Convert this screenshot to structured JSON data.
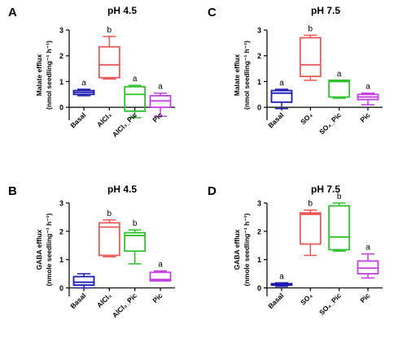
{
  "figure": {
    "panels_order": [
      "A",
      "C",
      "B",
      "D"
    ]
  },
  "chart_data": [
    {
      "panel_letter": "A",
      "type": "box",
      "title": "pH 4.5",
      "ylabel_line1": "Malate efflux",
      "ylabel_line2": "(nmol seedling⁻¹ h⁻¹)",
      "ylim": [
        -0.5,
        3
      ],
      "yticks": [
        0,
        1,
        2,
        3
      ],
      "categories": [
        "Basal",
        "AlCl₃",
        "AlCl₃_Pic",
        "Pic"
      ],
      "colors": [
        "#1a1ab0",
        "#e85a5a",
        "#2ec02e",
        "#c040e0"
      ],
      "letters": [
        "a",
        "b",
        "a",
        "a"
      ],
      "boxes": [
        {
          "min": 0.45,
          "q1": 0.5,
          "median": 0.58,
          "q3": 0.65,
          "max": 0.7
        },
        {
          "min": 1.1,
          "q1": 1.15,
          "median": 1.65,
          "q3": 2.35,
          "max": 2.75
        },
        {
          "min": -0.4,
          "q1": -0.15,
          "median": 0.5,
          "q3": 0.8,
          "max": 0.85
        },
        {
          "min": -0.35,
          "q1": 0.0,
          "median": 0.25,
          "q3": 0.45,
          "max": 0.55
        }
      ]
    },
    {
      "panel_letter": "C",
      "type": "box",
      "title": "pH 7.5",
      "ylabel_line1": "Malate efflux",
      "ylabel_line2": "(nmol seedling⁻¹ h⁻¹)",
      "ylim": [
        -0.5,
        3
      ],
      "yticks": [
        0,
        1,
        2,
        3
      ],
      "categories": [
        "Basal",
        "SO₄",
        "SO₄_Pic",
        "Pic"
      ],
      "colors": [
        "#1a1ab0",
        "#e85a5a",
        "#2ec02e",
        "#c040e0"
      ],
      "letters": [
        "a",
        "b",
        "a",
        "a"
      ],
      "boxes": [
        {
          "min": -0.05,
          "q1": 0.2,
          "median": 0.55,
          "q3": 0.65,
          "max": 0.7
        },
        {
          "min": 1.05,
          "q1": 1.2,
          "median": 1.65,
          "q3": 2.7,
          "max": 2.8
        },
        {
          "min": 0.35,
          "q1": 0.4,
          "median": 1.0,
          "q3": 1.05,
          "max": 1.05
        },
        {
          "min": 0.1,
          "q1": 0.3,
          "median": 0.4,
          "q3": 0.5,
          "max": 0.55
        }
      ]
    },
    {
      "panel_letter": "B",
      "type": "box",
      "title": "pH 4.5",
      "ylabel_line1": "GABA efflux",
      "ylabel_line2": "(nmole seedling⁻¹ h⁻¹)",
      "ylim": [
        -0.3,
        3
      ],
      "yticks": [
        0,
        1,
        2,
        3
      ],
      "categories": [
        "Basal",
        "AlCl₃",
        "AlCl₃_Pic",
        "Pic"
      ],
      "colors": [
        "#1a1ab0",
        "#e85a5a",
        "#2ec02e",
        "#c040e0"
      ],
      "letters": [
        "",
        "b",
        "b",
        "a"
      ],
      "boxes": [
        {
          "min": 0.0,
          "q1": 0.1,
          "median": 0.2,
          "q3": 0.4,
          "max": 0.5
        },
        {
          "min": 1.1,
          "q1": 1.15,
          "median": 2.15,
          "q3": 2.3,
          "max": 2.4
        },
        {
          "min": 0.85,
          "q1": 1.3,
          "median": 1.85,
          "q3": 1.95,
          "max": 2.05
        },
        {
          "min": 0.25,
          "q1": 0.25,
          "median": 0.3,
          "q3": 0.55,
          "max": 0.6
        }
      ]
    },
    {
      "panel_letter": "D",
      "type": "box",
      "title": "pH 7.5",
      "ylabel_line1": "GABA efflux",
      "ylabel_line2": "(nmole seedling⁻¹ h⁻¹)",
      "ylim": [
        -0.3,
        3
      ],
      "yticks": [
        0,
        1,
        2,
        3
      ],
      "categories": [
        "Basal",
        "SO₄",
        "SO₄_Pic",
        "Pic"
      ],
      "colors": [
        "#1a1ab0",
        "#e85a5a",
        "#2ec02e",
        "#c040e0"
      ],
      "letters": [
        "a",
        "b",
        "b",
        "a"
      ],
      "boxes": [
        {
          "min": 0.05,
          "q1": 0.1,
          "median": 0.13,
          "q3": 0.15,
          "max": 0.18
        },
        {
          "min": 1.15,
          "q1": 1.55,
          "median": 2.6,
          "q3": 2.65,
          "max": 2.75
        },
        {
          "min": 1.3,
          "q1": 1.35,
          "median": 1.8,
          "q3": 2.9,
          "max": 3.0
        },
        {
          "min": 0.35,
          "q1": 0.5,
          "median": 0.7,
          "q3": 0.95,
          "max": 1.2
        }
      ]
    }
  ]
}
